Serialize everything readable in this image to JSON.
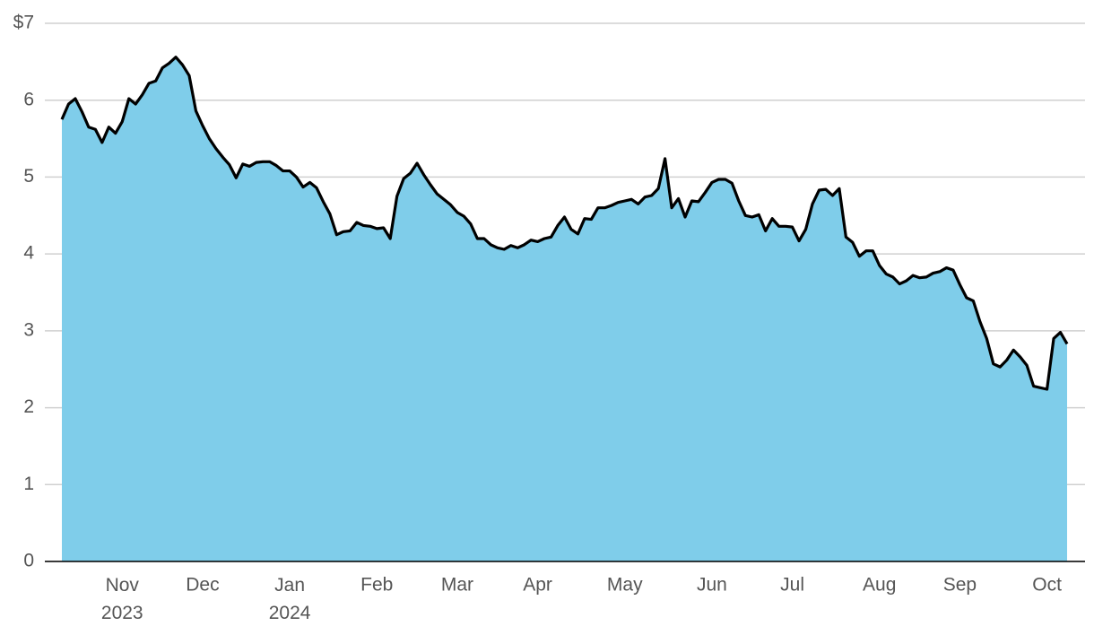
{
  "chart_data": {
    "type": "area",
    "categories": [
      null,
      null,
      null,
      null,
      null,
      null,
      null,
      null,
      null,
      "Nov 2023",
      null,
      null,
      null,
      null,
      null,
      null,
      null,
      null,
      null,
      null,
      null,
      "Dec",
      null,
      null,
      null,
      null,
      null,
      null,
      null,
      null,
      null,
      null,
      null,
      null,
      "Jan 2024",
      null,
      null,
      null,
      null,
      null,
      null,
      null,
      null,
      null,
      null,
      null,
      null,
      "Feb",
      null,
      null,
      null,
      null,
      null,
      null,
      null,
      null,
      null,
      null,
      null,
      "Mar",
      null,
      null,
      null,
      null,
      null,
      null,
      null,
      null,
      null,
      null,
      null,
      "Apr",
      null,
      null,
      null,
      null,
      null,
      null,
      null,
      null,
      null,
      null,
      null,
      null,
      "May",
      null,
      null,
      null,
      null,
      null,
      null,
      null,
      null,
      null,
      null,
      null,
      null,
      "Jun",
      null,
      null,
      null,
      null,
      null,
      null,
      null,
      null,
      null,
      null,
      null,
      "Jul",
      null,
      null,
      null,
      null,
      null,
      null,
      null,
      null,
      null,
      null,
      null,
      null,
      "Aug",
      null,
      null,
      null,
      null,
      null,
      null,
      null,
      null,
      null,
      null,
      null,
      "Sep",
      null,
      null,
      null,
      null,
      null,
      null,
      null,
      null,
      null,
      null,
      null,
      null,
      "Oct",
      null,
      null,
      null
    ],
    "values": [
      5.75,
      5.95,
      6.02,
      5.85,
      5.65,
      5.62,
      5.45,
      5.65,
      5.57,
      5.72,
      6.02,
      5.95,
      6.07,
      6.22,
      6.25,
      6.42,
      6.48,
      6.56,
      6.46,
      6.32,
      5.86,
      5.67,
      5.5,
      5.37,
      5.26,
      5.16,
      4.99,
      5.17,
      5.14,
      5.19,
      5.2,
      5.2,
      5.15,
      5.08,
      5.08,
      5.0,
      4.87,
      4.93,
      4.86,
      4.68,
      4.52,
      4.25,
      4.29,
      4.3,
      4.41,
      4.37,
      4.36,
      4.33,
      4.34,
      4.2,
      4.75,
      4.98,
      5.05,
      5.18,
      5.03,
      4.9,
      4.78,
      4.71,
      4.64,
      4.54,
      4.49,
      4.39,
      4.2,
      4.2,
      4.12,
      4.08,
      4.06,
      4.11,
      4.08,
      4.12,
      4.18,
      4.16,
      4.2,
      4.22,
      4.37,
      4.48,
      4.32,
      4.26,
      4.46,
      4.45,
      4.6,
      4.6,
      4.63,
      4.67,
      4.69,
      4.71,
      4.65,
      4.74,
      4.76,
      4.85,
      5.24,
      4.6,
      4.72,
      4.48,
      4.69,
      4.68,
      4.8,
      4.93,
      4.97,
      4.97,
      4.92,
      4.69,
      4.5,
      4.48,
      4.51,
      4.3,
      4.46,
      4.36,
      4.36,
      4.35,
      4.17,
      4.32,
      4.65,
      4.83,
      4.84,
      4.76,
      4.85,
      4.22,
      4.15,
      3.97,
      4.04,
      4.04,
      3.85,
      3.74,
      3.7,
      3.61,
      3.65,
      3.72,
      3.69,
      3.7,
      3.75,
      3.77,
      3.82,
      3.79,
      3.6,
      3.43,
      3.39,
      3.12,
      2.9,
      2.57,
      2.53,
      2.62,
      2.75,
      2.66,
      2.55,
      2.28,
      2.26,
      2.24,
      2.9,
      2.98,
      2.83
    ],
    "color": "#7fcdea",
    "line_color": "#000000",
    "ylim": [
      0,
      7
    ],
    "yticks": [
      0,
      1,
      2,
      3,
      4,
      5,
      6,
      {
        "value": 7,
        "label": "$7"
      }
    ],
    "grid": true
  }
}
